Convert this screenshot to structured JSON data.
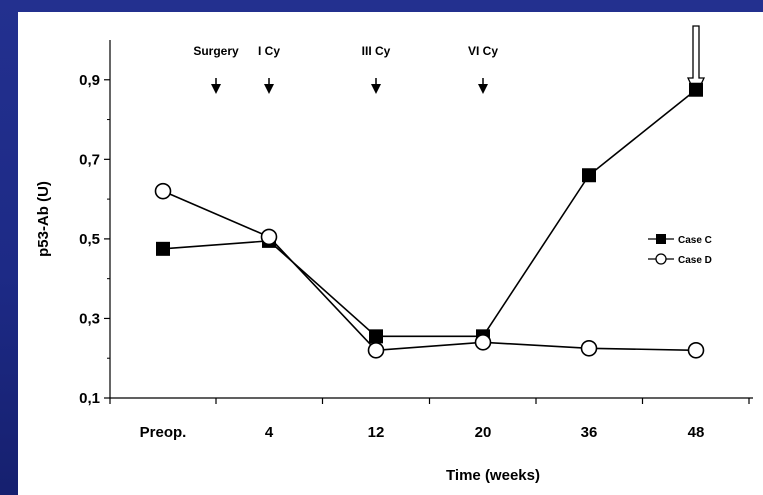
{
  "chart_data": {
    "type": "line",
    "categories": [
      "Preop.",
      "4",
      "12",
      "20",
      "36",
      "48"
    ],
    "ylabel": "p53-Ab (U)",
    "xlabel": "Time (weeks)",
    "ylim": [
      0.1,
      1.0
    ],
    "yticks": [
      "0,1",
      "0,3",
      "0,5",
      "0,7",
      "0,9"
    ],
    "ytick_values": [
      0.1,
      0.3,
      0.5,
      0.7,
      0.9
    ],
    "series": [
      {
        "name": "Case C",
        "marker": "filled-square",
        "values": [
          0.475,
          0.495,
          0.255,
          0.255,
          0.66,
          0.875
        ]
      },
      {
        "name": "Case D",
        "marker": "open-circle",
        "values": [
          0.62,
          0.505,
          0.22,
          0.24,
          0.225,
          0.22
        ]
      }
    ],
    "legend_position": "right",
    "annotations": [
      {
        "label": "Surgery",
        "x_position": 0.5,
        "arrow": "filled"
      },
      {
        "label": "I Cy",
        "x_position": 1.0,
        "arrow": "filled"
      },
      {
        "label": "III Cy",
        "x_position": 2.0,
        "arrow": "filled"
      },
      {
        "label": "VI Cy",
        "x_position": 3.0,
        "arrow": "filled"
      },
      {
        "label": "",
        "x_position": 5.0,
        "arrow": "hollow"
      }
    ],
    "colors": {
      "line": "#000000",
      "background": "#ffffff",
      "frame": "#1f2c8a"
    }
  }
}
